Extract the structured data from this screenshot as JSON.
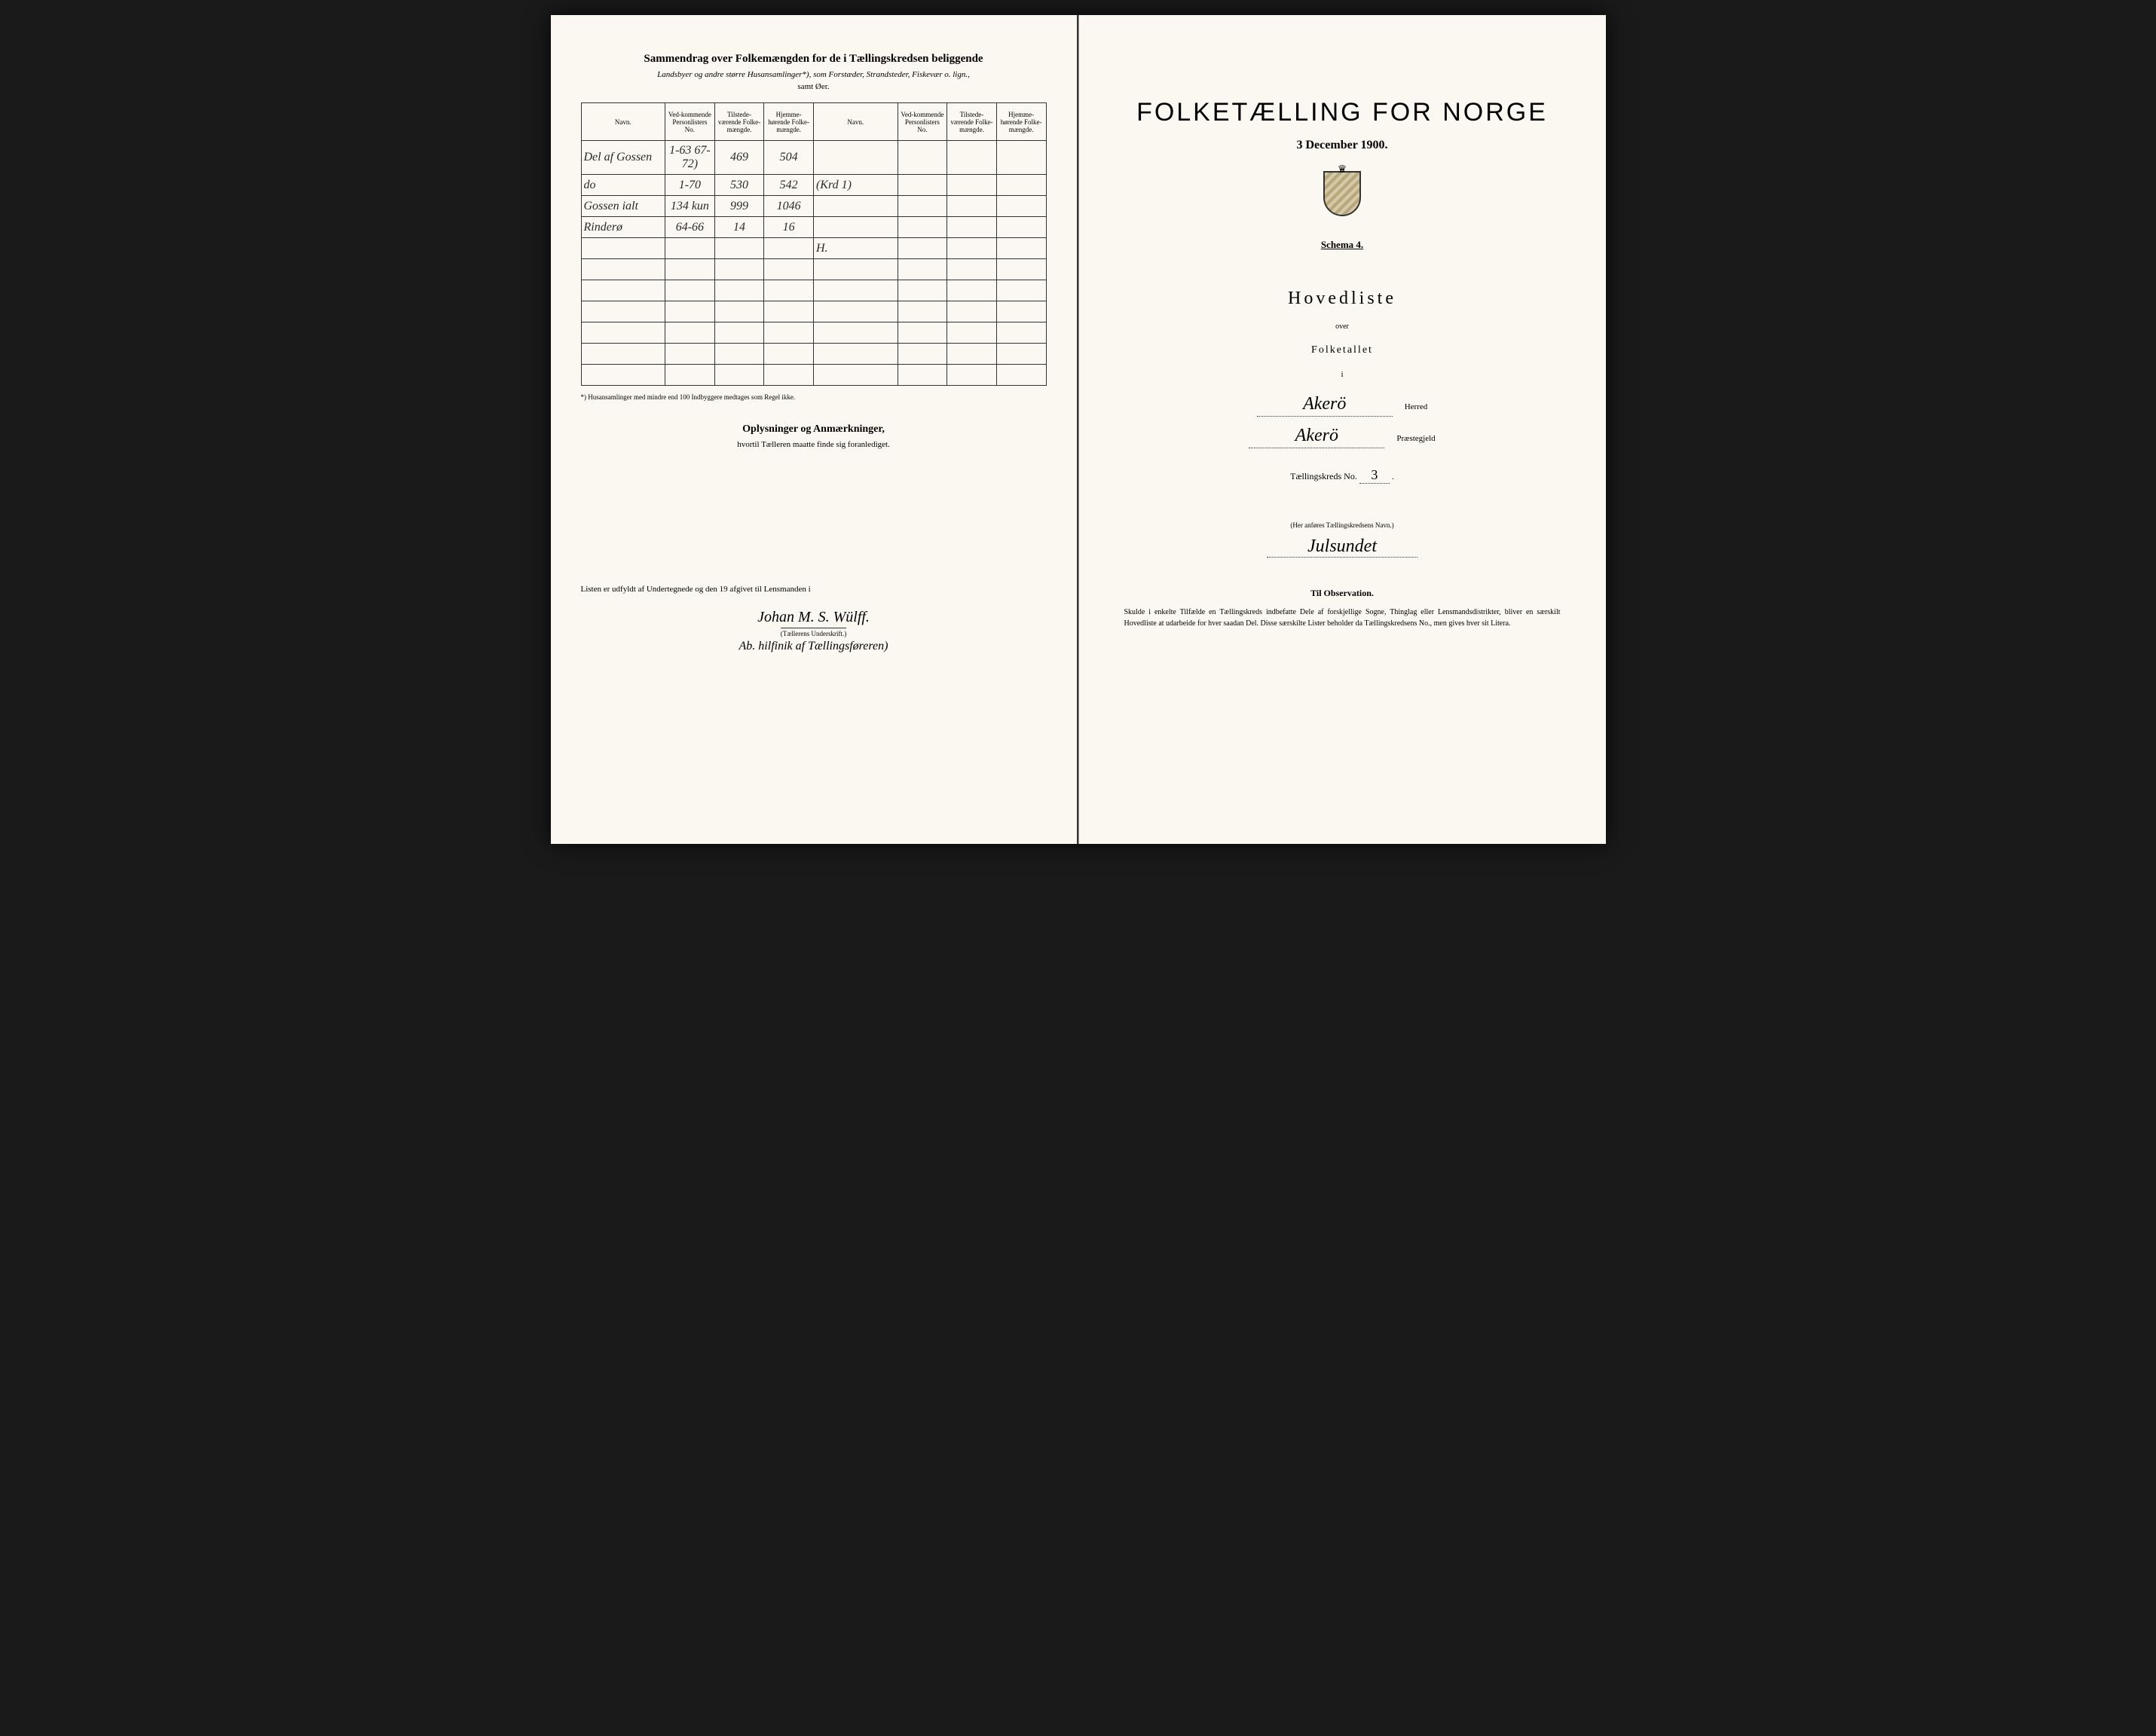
{
  "left": {
    "summary_title": "Sammendrag over Folkemængden for de i Tællingskredsen beliggende",
    "summary_subtitle": "Landsbyer og andre større Husansamlinger*), som Forstæder, Strandsteder, Fiskevær o. lign.,",
    "summary_subsub": "samt Øer.",
    "headers": {
      "navn": "Navn.",
      "vedkommende": "Ved-kommende Personlisters No.",
      "tilstede": "Tilstede-værende Folke-mængde.",
      "hjemme": "Hjemme-hørende Folke-mængde."
    },
    "rows": [
      {
        "navn": "Del af Gossen",
        "ved": "1-63 67-72)",
        "til": "469",
        "hje": "504",
        "navn2": "",
        "ved2": "",
        "til2": "",
        "hje2": ""
      },
      {
        "navn": "do",
        "ved": "1-70",
        "til": "530",
        "hje": "542",
        "navn2": "(Krd 1)",
        "ved2": "",
        "til2": "",
        "hje2": ""
      },
      {
        "navn": "Gossen ialt",
        "ved": "134 kun",
        "til": "999",
        "hje": "1046",
        "navn2": "",
        "ved2": "",
        "til2": "",
        "hje2": ""
      },
      {
        "navn": "Rinderø",
        "ved": "64-66",
        "til": "14",
        "hje": "16",
        "navn2": "",
        "ved2": "",
        "til2": "",
        "hje2": ""
      },
      {
        "navn": "",
        "ved": "",
        "til": "",
        "hje": "",
        "navn2": "H.",
        "ved2": "",
        "til2": "",
        "hje2": ""
      },
      {
        "navn": "",
        "ved": "",
        "til": "",
        "hje": "",
        "navn2": "",
        "ved2": "",
        "til2": "",
        "hje2": ""
      },
      {
        "navn": "",
        "ved": "",
        "til": "",
        "hje": "",
        "navn2": "",
        "ved2": "",
        "til2": "",
        "hje2": ""
      },
      {
        "navn": "",
        "ved": "",
        "til": "",
        "hje": "",
        "navn2": "",
        "ved2": "",
        "til2": "",
        "hje2": ""
      },
      {
        "navn": "",
        "ved": "",
        "til": "",
        "hje": "",
        "navn2": "",
        "ved2": "",
        "til2": "",
        "hje2": ""
      },
      {
        "navn": "",
        "ved": "",
        "til": "",
        "hje": "",
        "navn2": "",
        "ved2": "",
        "til2": "",
        "hje2": ""
      },
      {
        "navn": "",
        "ved": "",
        "til": "",
        "hje": "",
        "navn2": "",
        "ved2": "",
        "til2": "",
        "hje2": ""
      }
    ],
    "footnote": "*) Husansamlinger med mindre end 100 Indbyggere medtages som Regel ikke.",
    "oplysninger_title": "Oplysninger og Anmærkninger,",
    "oplysninger_sub": "hvortil Tælleren maatte finde sig foranlediget.",
    "signature_line": "Listen er udfyldt af Undertegnede og den                    19      afgivet til Lensmanden i",
    "signature_name": "Johan M. S. Wülff.",
    "signature_label": "(Tællerens Underskrift.)",
    "signature_extra": "Ab. hilfinik af Tællingsføreren)"
  },
  "right": {
    "main_title": "FOLKETÆLLING FOR NORGE",
    "date": "3 December 1900.",
    "schema": "Schema 4.",
    "hovedliste": "Hovedliste",
    "over": "over",
    "folketallet": "Folketallet",
    "i": "i",
    "herred_name": "Akerö",
    "herred_label": "Herred",
    "praeste_name": "Akerö",
    "praeste_label": "Præstegjeld",
    "kreds_prefix": "Tællingskreds No.",
    "kreds_num": "3",
    "anfor_label": "(Her anføres Tællingskredsens Navn.)",
    "kreds_name": "Julsundet",
    "observation_title": "Til Observation.",
    "observation_text": "Skulde i enkelte Tilfælde en Tællingskreds indbefatte Dele af forskjellige Sogne, Thinglag eller Lensmandsdistrikter, bliver en særskilt Hovedliste at udarbeide for hver saadan Del. Disse særskilte Lister beholder da Tællingskredsens No., men gives hver sit Litera."
  },
  "colors": {
    "paper": "#faf8f0",
    "ink": "#1a1a1a",
    "border": "#333333"
  }
}
